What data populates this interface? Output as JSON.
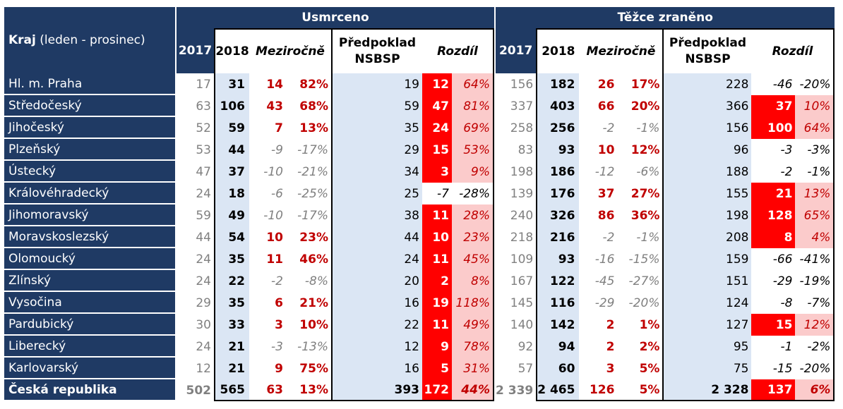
{
  "header": {
    "kraj_bold": "Kraj",
    "kraj_rest": " (leden - prosinec)",
    "group1": "Usmrceno",
    "group2": "Těžce zraněno",
    "col_2017": "2017",
    "col_2018": "2018",
    "col_mezirocne": "Meziročně",
    "col_predpoklad_l1": "Předpoklad",
    "col_predpoklad_l2": "NSBSP",
    "col_rozdil": "Rozdíl"
  },
  "rows": [
    {
      "kraj": "Hl. m. Praha",
      "u": [
        "17",
        "31",
        "14",
        "82%",
        "19",
        "12",
        "64%"
      ],
      "t": [
        "156",
        "182",
        "26",
        "17%",
        "228",
        "-46",
        "-20%"
      ]
    },
    {
      "kraj": "Středočeský",
      "u": [
        "63",
        "106",
        "43",
        "68%",
        "59",
        "47",
        "81%"
      ],
      "t": [
        "337",
        "403",
        "66",
        "20%",
        "366",
        "37",
        "10%"
      ]
    },
    {
      "kraj": "Jihočeský",
      "u": [
        "52",
        "59",
        "7",
        "13%",
        "35",
        "24",
        "69%"
      ],
      "t": [
        "258",
        "256",
        "-2",
        "-1%",
        "156",
        "100",
        "64%"
      ]
    },
    {
      "kraj": "Plzeňský",
      "u": [
        "53",
        "44",
        "-9",
        "-17%",
        "29",
        "15",
        "53%"
      ],
      "t": [
        "83",
        "93",
        "10",
        "12%",
        "96",
        "-3",
        "-3%"
      ]
    },
    {
      "kraj": "Ústecký",
      "u": [
        "47",
        "37",
        "-10",
        "-21%",
        "34",
        "3",
        "9%"
      ],
      "t": [
        "198",
        "186",
        "-12",
        "-6%",
        "188",
        "-2",
        "-1%"
      ]
    },
    {
      "kraj": "Královéhradecký",
      "u": [
        "24",
        "18",
        "-6",
        "-25%",
        "25",
        "-7",
        "-28%"
      ],
      "t": [
        "139",
        "176",
        "37",
        "27%",
        "155",
        "21",
        "13%"
      ]
    },
    {
      "kraj": "Jihomoravský",
      "u": [
        "59",
        "49",
        "-10",
        "-17%",
        "38",
        "11",
        "28%"
      ],
      "t": [
        "240",
        "326",
        "86",
        "36%",
        "198",
        "128",
        "65%"
      ]
    },
    {
      "kraj": "Moravskoslezský",
      "u": [
        "44",
        "54",
        "10",
        "23%",
        "44",
        "10",
        "23%"
      ],
      "t": [
        "218",
        "216",
        "-2",
        "-1%",
        "208",
        "8",
        "4%"
      ]
    },
    {
      "kraj": "Olomoucký",
      "u": [
        "24",
        "35",
        "11",
        "46%",
        "24",
        "11",
        "45%"
      ],
      "t": [
        "109",
        "93",
        "-16",
        "-15%",
        "159",
        "-66",
        "-41%"
      ]
    },
    {
      "kraj": "Zlínský",
      "u": [
        "24",
        "22",
        "-2",
        "-8%",
        "20",
        "2",
        "8%"
      ],
      "t": [
        "167",
        "122",
        "-45",
        "-27%",
        "151",
        "-29",
        "-19%"
      ]
    },
    {
      "kraj": "Vysočina",
      "u": [
        "29",
        "35",
        "6",
        "21%",
        "16",
        "19",
        "118%"
      ],
      "t": [
        "145",
        "116",
        "-29",
        "-20%",
        "124",
        "-8",
        "-7%"
      ]
    },
    {
      "kraj": "Pardubický",
      "u": [
        "30",
        "33",
        "3",
        "10%",
        "22",
        "11",
        "49%"
      ],
      "t": [
        "140",
        "142",
        "2",
        "1%",
        "127",
        "15",
        "12%"
      ]
    },
    {
      "kraj": "Liberecký",
      "u": [
        "24",
        "21",
        "-3",
        "-13%",
        "12",
        "9",
        "78%"
      ],
      "t": [
        "92",
        "94",
        "2",
        "2%",
        "95",
        "-1",
        "-2%"
      ]
    },
    {
      "kraj": "Karlovarský",
      "u": [
        "12",
        "21",
        "9",
        "75%",
        "16",
        "5",
        "31%"
      ],
      "t": [
        "57",
        "60",
        "3",
        "5%",
        "75",
        "-15",
        "-20%"
      ]
    },
    {
      "kraj": "Česká republika",
      "u": [
        "502",
        "565",
        "63",
        "13%",
        "393",
        "172",
        "44%"
      ],
      "t": [
        "2 339",
        "2 465",
        "126",
        "5%",
        "2 328",
        "137",
        "6%"
      ],
      "total": true
    }
  ],
  "colors": {
    "navy": "#1f3a64",
    "light_blue": "#dbe6f4",
    "increase_red": "#c00000",
    "highlight_red": "#ff0000",
    "highlight_pink": "#fbcbcb"
  }
}
